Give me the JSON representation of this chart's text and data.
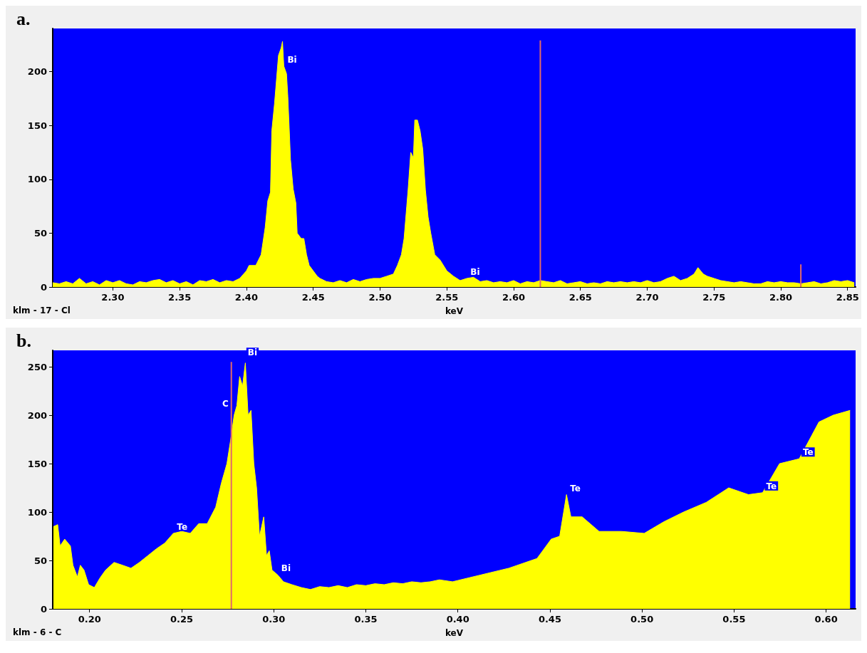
{
  "chart_data": [
    {
      "type": "area",
      "title": "a.",
      "xlabel": "keV",
      "xlim": [
        2.255,
        2.856
      ],
      "ylim": [
        0,
        240
      ],
      "xticks": [
        {
          "value": 2.3,
          "label": "2.30"
        },
        {
          "value": 2.35,
          "label": "2.35"
        },
        {
          "value": 2.4,
          "label": "2.40"
        },
        {
          "value": 2.45,
          "label": "2.45"
        },
        {
          "value": 2.5,
          "label": "2.50"
        },
        {
          "value": 2.55,
          "label": "2.55"
        },
        {
          "value": 2.6,
          "label": "2.60"
        },
        {
          "value": 2.65,
          "label": "2.65"
        },
        {
          "value": 2.7,
          "label": "2.70"
        },
        {
          "value": 2.75,
          "label": "2.75"
        },
        {
          "value": 2.8,
          "label": "2.80"
        },
        {
          "value": 2.85,
          "label": "2.85"
        }
      ],
      "yticks": [
        0,
        50,
        100,
        150,
        200
      ],
      "series": [
        {
          "color": "#ffff00",
          "x": [
            2.255,
            2.26,
            2.265,
            2.27,
            2.275,
            2.28,
            2.285,
            2.29,
            2.295,
            2.3,
            2.305,
            2.31,
            2.315,
            2.32,
            2.325,
            2.33,
            2.335,
            2.34,
            2.345,
            2.35,
            2.355,
            2.36,
            2.365,
            2.37,
            2.375,
            2.38,
            2.385,
            2.39,
            2.395,
            2.4,
            2.402,
            2.407,
            2.411,
            2.414,
            2.416,
            2.418,
            2.419,
            2.421,
            2.422,
            2.424,
            2.426,
            2.427,
            2.428,
            2.43,
            2.431,
            2.432,
            2.433,
            2.435,
            2.437,
            2.438,
            2.441,
            2.443,
            2.445,
            2.447,
            2.45,
            2.453,
            2.455,
            2.46,
            2.465,
            2.47,
            2.475,
            2.48,
            2.485,
            2.49,
            2.495,
            2.5,
            2.505,
            2.51,
            2.513,
            2.516,
            2.518,
            2.52,
            2.521,
            2.523,
            2.525,
            2.526,
            2.528,
            2.529,
            2.53,
            2.532,
            2.534,
            2.536,
            2.538,
            2.541,
            2.545,
            2.55,
            2.555,
            2.56,
            2.565,
            2.57,
            2.575,
            2.58,
            2.585,
            2.59,
            2.595,
            2.6,
            2.605,
            2.61,
            2.615,
            2.62,
            2.625,
            2.63,
            2.635,
            2.64,
            2.645,
            2.65,
            2.655,
            2.66,
            2.665,
            2.67,
            2.675,
            2.68,
            2.685,
            2.69,
            2.695,
            2.7,
            2.705,
            2.71,
            2.715,
            2.72,
            2.725,
            2.73,
            2.735,
            2.738,
            2.742,
            2.745,
            2.75,
            2.755,
            2.76,
            2.765,
            2.77,
            2.775,
            2.78,
            2.785,
            2.79,
            2.795,
            2.8,
            2.805,
            2.81,
            2.815,
            2.82,
            2.825,
            2.83,
            2.835,
            2.84,
            2.845,
            2.85,
            2.855
          ],
          "values": [
            4,
            3,
            5,
            3,
            8,
            3,
            5,
            2,
            6,
            4,
            6,
            3,
            2,
            5,
            4,
            6,
            7,
            4,
            6,
            3,
            5,
            2,
            6,
            5,
            7,
            4,
            6,
            5,
            8,
            15,
            20,
            20,
            30,
            55,
            80,
            88,
            145,
            170,
            185,
            215,
            222,
            228,
            205,
            198,
            177,
            148,
            118,
            91,
            78,
            50,
            45,
            45,
            30,
            20,
            15,
            10,
            8,
            5,
            4,
            6,
            4,
            7,
            5,
            7,
            8,
            8,
            10,
            12,
            20,
            30,
            45,
            75,
            90,
            125,
            120,
            155,
            155,
            150,
            145,
            128,
            90,
            65,
            50,
            30,
            25,
            15,
            10,
            6,
            8,
            9,
            5,
            6,
            4,
            5,
            4,
            6,
            3,
            5,
            4,
            6,
            5,
            4,
            6,
            3,
            4,
            5,
            3,
            4,
            3,
            5,
            4,
            5,
            4,
            5,
            4,
            6,
            4,
            5,
            8,
            10,
            6,
            8,
            12,
            18,
            12,
            10,
            8,
            6,
            5,
            4,
            5,
            4,
            3,
            3,
            5,
            4,
            5,
            4,
            4,
            3,
            4,
            5,
            3,
            4,
            6,
            5,
            6,
            4
          ]
        },
        {
          "type": "bar",
          "color": "#e06a6a",
          "x": [
            2.62,
            2.815
          ],
          "values": [
            229,
            21
          ]
        }
      ],
      "annotations": [
        {
          "text": "Bi",
          "x": 2.428,
          "y": 205
        },
        {
          "text": "Bi",
          "x": 2.565,
          "y": 8
        },
        "klm - 17 - Cl"
      ]
    },
    {
      "type": "area",
      "title": "b.",
      "xlabel": "keV",
      "xlim": [
        0.18,
        0.616
      ],
      "ylim": [
        0,
        267
      ],
      "xticks": [
        {
          "value": 0.2,
          "label": "0.20"
        },
        {
          "value": 0.25,
          "label": "0.25"
        },
        {
          "value": 0.3,
          "label": "0.30"
        },
        {
          "value": 0.35,
          "label": "0.35"
        },
        {
          "value": 0.4,
          "label": "0.40"
        },
        {
          "value": 0.45,
          "label": "0.45"
        },
        {
          "value": 0.5,
          "label": "0.50"
        },
        {
          "value": 0.55,
          "label": "0.55"
        },
        {
          "value": 0.6,
          "label": "0.60"
        }
      ],
      "yticks": [
        0,
        50,
        100,
        150,
        200,
        250
      ],
      "series": [
        {
          "color": "#ffff00",
          "x": [
            0.1804,
            0.1827,
            0.184,
            0.1865,
            0.1896,
            0.191,
            0.1934,
            0.195,
            0.197,
            0.1995,
            0.2026,
            0.2057,
            0.2087,
            0.2133,
            0.218,
            0.2225,
            0.2271,
            0.2317,
            0.2363,
            0.2409,
            0.2455,
            0.2501,
            0.2547,
            0.2593,
            0.2639,
            0.2685,
            0.2716,
            0.2746,
            0.2769,
            0.2785,
            0.28,
            0.2815,
            0.2831,
            0.2846,
            0.2861,
            0.2877,
            0.2892,
            0.2907,
            0.2923,
            0.2946,
            0.2961,
            0.2976,
            0.2991,
            0.3022,
            0.3053,
            0.3099,
            0.315,
            0.32,
            0.325,
            0.33,
            0.335,
            0.34,
            0.345,
            0.35,
            0.355,
            0.36,
            0.365,
            0.37,
            0.375,
            0.38,
            0.385,
            0.39,
            0.3971,
            0.4124,
            0.4277,
            0.443,
            0.4507,
            0.4553,
            0.459,
            0.4614,
            0.4675,
            0.4767,
            0.489,
            0.5012,
            0.5119,
            0.5226,
            0.5349,
            0.5471,
            0.5578,
            0.5655,
            0.5747,
            0.5854,
            0.5961,
            0.6038,
            0.613
          ],
          "values": [
            85,
            87,
            65,
            72,
            65,
            45,
            33,
            45,
            40,
            25,
            22,
            32,
            40,
            48,
            45,
            42,
            48,
            55,
            62,
            68,
            78,
            80,
            78,
            88,
            88,
            105,
            130,
            150,
            178,
            200,
            210,
            240,
            230,
            254,
            200,
            205,
            150,
            125,
            75,
            95,
            55,
            60,
            40,
            35,
            28,
            25,
            22,
            20,
            23,
            22,
            24,
            22,
            25,
            24,
            26,
            25,
            27,
            26,
            28,
            27,
            28,
            30,
            28,
            35,
            42,
            52,
            72,
            75,
            118,
            95,
            95,
            80,
            80,
            78,
            90,
            100,
            110,
            125,
            118,
            120,
            150,
            155,
            193,
            200,
            205
          ]
        },
        {
          "type": "bar",
          "color": "#e06a6a",
          "x": [
            0.277
          ],
          "values": [
            255
          ]
        }
      ],
      "annotations": [
        {
          "text": "Te",
          "x": 0.2455,
          "y": 78
        },
        {
          "text": "C",
          "x": 0.277,
          "y": 205
        },
        {
          "text": "Bi",
          "x": 0.284,
          "y": 258
        },
        {
          "text": "Bi",
          "x": 0.3022,
          "y": 35
        },
        {
          "text": "Te",
          "x": 0.459,
          "y": 118
        },
        {
          "text": "Te",
          "x": 0.5655,
          "y": 120
        },
        {
          "text": "Te",
          "x": 0.5854,
          "y": 155
        },
        "klm - 6 - C"
      ]
    }
  ]
}
